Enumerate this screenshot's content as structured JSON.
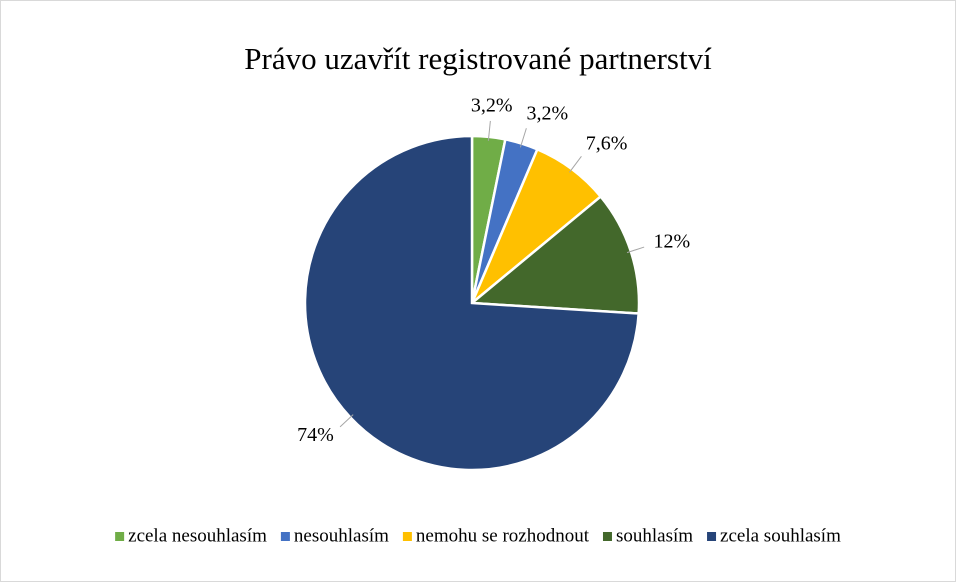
{
  "chart_data": {
    "type": "pie",
    "title": "Právo uzavřít registrované partnerství",
    "categories": [
      "zcela nesouhlasím",
      "nesouhlasím",
      "nemohu se rozhodnout",
      "souhlasím",
      "zcela souhlasím"
    ],
    "values": [
      3.2,
      3.2,
      7.6,
      12,
      74
    ],
    "value_labels": [
      "3,2%",
      "3,2%",
      "7,6%",
      "12%",
      "74%"
    ],
    "colors": [
      "#70ad47",
      "#4472c4",
      "#ffc000",
      "#43682b",
      "#264478"
    ],
    "legend": "bottom"
  }
}
